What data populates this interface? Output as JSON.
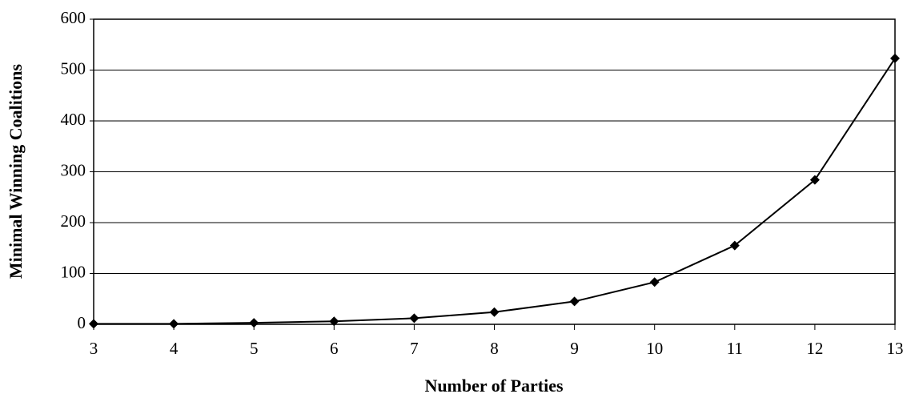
{
  "chart_data": {
    "type": "line",
    "x_label": "Number of Parties",
    "y_label": "Minimal Winning Coalitions",
    "x": [
      3,
      4,
      5,
      6,
      7,
      8,
      9,
      10,
      11,
      12,
      13
    ],
    "series": [
      {
        "name": "Minimal Winning Coalitions",
        "color": "#000000",
        "values": [
          1,
          1,
          3,
          6,
          12,
          24,
          45,
          83,
          155,
          284,
          523
        ]
      }
    ],
    "xlim": [
      3,
      13
    ],
    "xticks": [
      3,
      4,
      5,
      6,
      7,
      8,
      9,
      10,
      11,
      12,
      13
    ],
    "ylim": [
      0,
      600
    ],
    "yticks": [
      0,
      100,
      200,
      300,
      400,
      500,
      600
    ],
    "grid": true
  }
}
